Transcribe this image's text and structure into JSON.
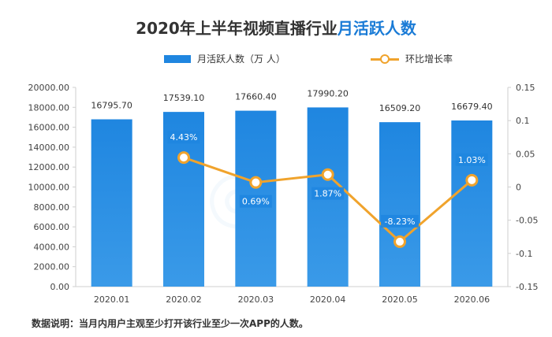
{
  "title": {
    "main": "2020年上半年视频直播行业",
    "highlight": "月活跃人数"
  },
  "legend": {
    "bar_label": "月活跃人数（万 人）",
    "line_label": "环比增长率"
  },
  "note": "数据说明：当月内用户主观至少打开该行业至少一次APP的人数。",
  "colors": {
    "bar": "#1f86e0",
    "line": "#f0a32c",
    "title_highlight": "#1a7bd6"
  },
  "chart_data": {
    "type": "bar",
    "categories": [
      "2020.01",
      "2020.02",
      "2020.03",
      "2020.04",
      "2020.05",
      "2020.06"
    ],
    "series": [
      {
        "name": "月活跃人数（万 人）",
        "type": "bar",
        "axis": "left",
        "values": [
          16795.7,
          17539.1,
          17660.4,
          17990.2,
          16509.2,
          16679.4
        ],
        "labels": [
          "16795.70",
          "17539.10",
          "17660.40",
          "17990.20",
          "16509.20",
          "16679.40"
        ]
      },
      {
        "name": "环比增长率",
        "type": "line",
        "axis": "right",
        "values": [
          null,
          0.0443,
          0.0069,
          0.0187,
          -0.0823,
          0.0103
        ],
        "labels": [
          "",
          "4.43%",
          "0.69%",
          "1.87%",
          "-8.23%",
          "1.03%"
        ]
      }
    ],
    "y_left": {
      "min": 0,
      "max": 20000,
      "ticks": [
        0,
        2000,
        4000,
        6000,
        8000,
        10000,
        12000,
        14000,
        16000,
        18000,
        20000
      ],
      "tick_labels": [
        "0.00",
        "2000.00",
        "4000.00",
        "6000.00",
        "8000.00",
        "10000.00",
        "12000.00",
        "14000.00",
        "16000.00",
        "18000.00",
        "20000.00"
      ]
    },
    "y_right": {
      "min": -0.15,
      "max": 0.15,
      "ticks": [
        -0.15,
        -0.1,
        -0.05,
        0,
        0.05,
        0.1,
        0.15
      ],
      "tick_labels": [
        "-0.15",
        "-0.1",
        "-0.05",
        "0",
        "0.05",
        "0.1",
        "0.15"
      ]
    },
    "legend_position": "top",
    "grid": false
  }
}
